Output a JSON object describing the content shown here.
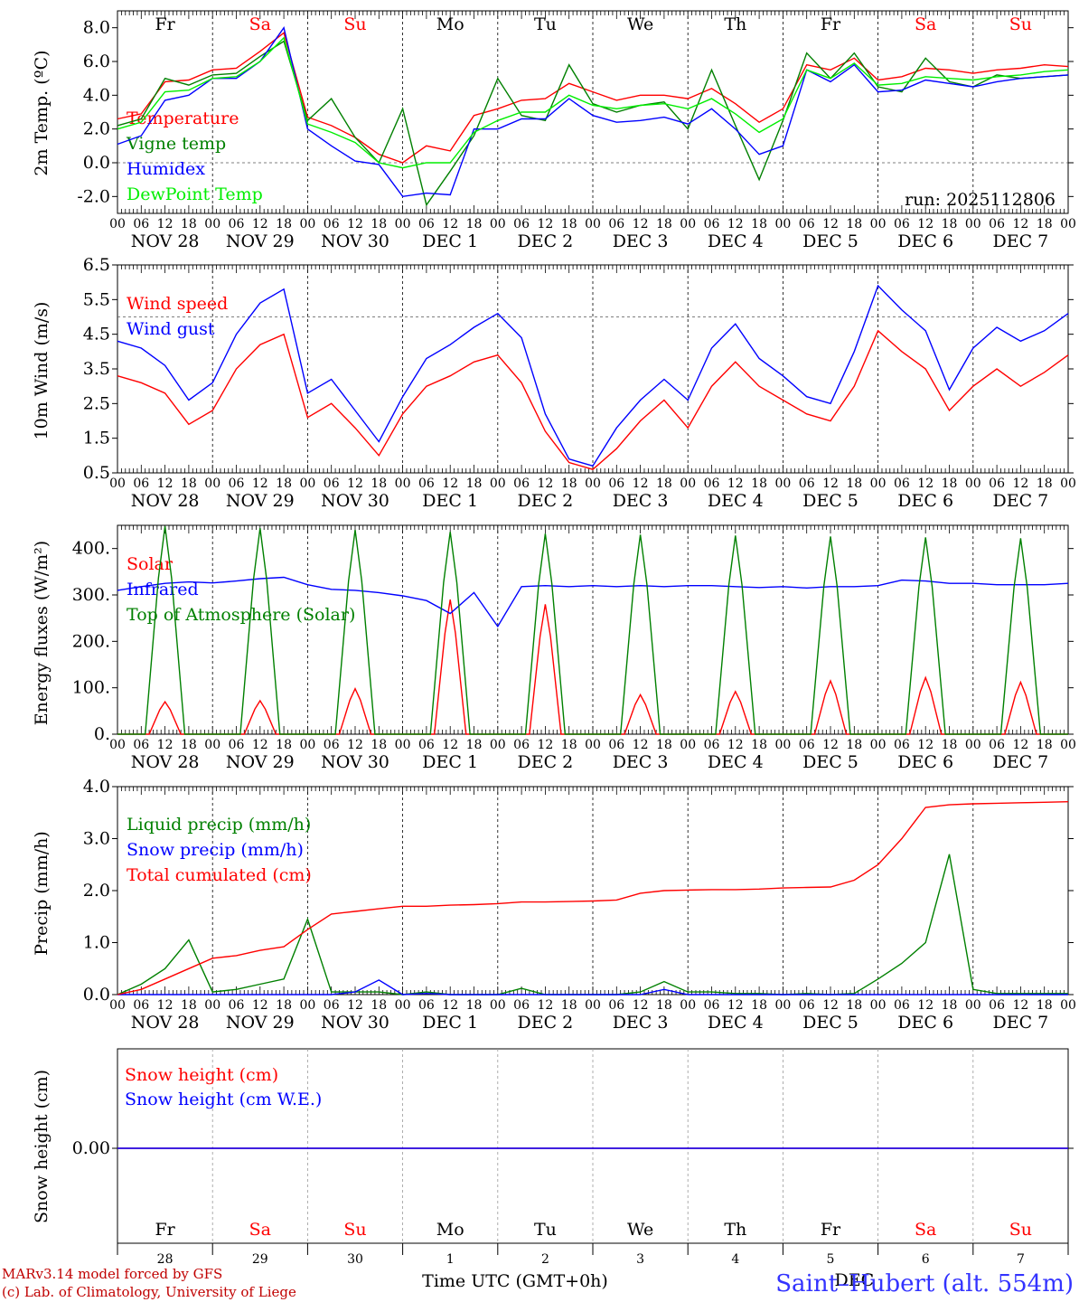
{
  "chart_data": [
    {
      "type": "line",
      "id": "temp",
      "ylabel": "2m Temp. (ºC)",
      "ylim": [
        -3.0,
        9.0
      ],
      "yticks": [
        -2.0,
        0.0,
        2.0,
        4.0,
        6.0,
        8.0
      ],
      "ytick_labels": [
        "-2.0",
        "0.0",
        "2.0",
        "4.0",
        "6.0",
        "8.0"
      ],
      "reference_line": 0.0,
      "x_hours": [
        0,
        6,
        12,
        18,
        24,
        30,
        36,
        42,
        48,
        54,
        60,
        66,
        72,
        78,
        84,
        90,
        96,
        102,
        108,
        114,
        120,
        126,
        132,
        138,
        144,
        150,
        156,
        162,
        168,
        174,
        180,
        186,
        192,
        198,
        204,
        210,
        216,
        222,
        228,
        234,
        240
      ],
      "annotation": "run: 2025112806",
      "series": [
        {
          "name": "Temperature",
          "color": "#ff0000",
          "values": [
            2.6,
            2.9,
            4.8,
            4.9,
            5.5,
            5.6,
            6.6,
            7.7,
            2.7,
            2.2,
            1.5,
            0.5,
            0.0,
            1.0,
            0.7,
            2.8,
            3.2,
            3.7,
            3.8,
            4.7,
            4.2,
            3.7,
            4.0,
            4.0,
            3.8,
            4.4,
            3.5,
            2.4,
            3.2,
            5.8,
            5.5,
            6.2,
            4.9,
            5.1,
            5.6,
            5.5,
            5.3,
            5.5,
            5.6,
            5.8,
            5.7
          ]
        },
        {
          "name": "Vigne temp",
          "color": "#008000",
          "values": [
            2.2,
            2.6,
            5.0,
            4.6,
            5.2,
            5.3,
            6.3,
            7.2,
            2.5,
            3.8,
            1.5,
            0.0,
            3.2,
            -2.5,
            -0.5,
            1.6,
            5.0,
            2.8,
            2.5,
            5.8,
            3.5,
            3.0,
            3.4,
            3.6,
            2.0,
            5.5,
            2.2,
            -1.0,
            2.5,
            6.5,
            5.0,
            6.5,
            4.5,
            4.2,
            6.2,
            4.8,
            4.5,
            5.2,
            5.0,
            5.1,
            5.2
          ]
        },
        {
          "name": "Humidex",
          "color": "#0000ff",
          "values": [
            1.1,
            1.6,
            3.7,
            4.0,
            5.0,
            5.0,
            6.0,
            8.0,
            2.0,
            1.0,
            0.1,
            -0.1,
            -2.0,
            -1.8,
            -1.9,
            2.0,
            2.0,
            2.6,
            2.6,
            3.8,
            2.8,
            2.4,
            2.5,
            2.7,
            2.3,
            3.2,
            2.0,
            0.5,
            1.0,
            5.5,
            4.8,
            5.8,
            4.2,
            4.3,
            4.9,
            4.7,
            4.5,
            4.8,
            5.0,
            5.1,
            5.2
          ]
        },
        {
          "name": "DewPoint Temp",
          "color": "#00ee00",
          "values": [
            2.0,
            2.4,
            4.2,
            4.3,
            5.0,
            5.1,
            6.0,
            7.4,
            2.3,
            1.8,
            1.2,
            0.0,
            -0.3,
            0.0,
            0.0,
            1.8,
            2.5,
            3.0,
            3.0,
            4.0,
            3.4,
            3.2,
            3.4,
            3.5,
            3.2,
            3.8,
            2.9,
            1.8,
            2.6,
            5.5,
            5.0,
            5.9,
            4.6,
            4.7,
            5.1,
            5.0,
            4.9,
            5.1,
            5.2,
            5.4,
            5.5
          ]
        }
      ]
    },
    {
      "type": "line",
      "id": "wind",
      "ylabel": "10m Wind (m/s)",
      "ylim": [
        0.5,
        6.5
      ],
      "yticks": [
        0.5,
        1.5,
        2.5,
        3.5,
        4.5,
        5.5,
        6.5
      ],
      "ytick_labels": [
        "0.5",
        "1.5",
        "2.5",
        "3.5",
        "4.5",
        "5.5",
        "6.5"
      ],
      "reference_line": 5.0,
      "x_hours": [
        0,
        6,
        12,
        18,
        24,
        30,
        36,
        42,
        48,
        54,
        60,
        66,
        72,
        78,
        84,
        90,
        96,
        102,
        108,
        114,
        120,
        126,
        132,
        138,
        144,
        150,
        156,
        162,
        168,
        174,
        180,
        186,
        192,
        198,
        204,
        210,
        216,
        222,
        228,
        234,
        240
      ],
      "series": [
        {
          "name": "Wind speed",
          "color": "#ff0000",
          "values": [
            3.3,
            3.1,
            2.8,
            1.9,
            2.3,
            3.5,
            4.2,
            4.5,
            2.1,
            2.5,
            1.8,
            1.0,
            2.2,
            3.0,
            3.3,
            3.7,
            3.9,
            3.1,
            1.7,
            0.8,
            0.6,
            1.2,
            2.0,
            2.6,
            1.8,
            3.0,
            3.7,
            3.0,
            2.6,
            2.2,
            2.0,
            3.0,
            4.6,
            4.0,
            3.5,
            2.3,
            3.0,
            3.5,
            3.0,
            3.4,
            3.9
          ]
        },
        {
          "name": "Wind gust",
          "color": "#0000ff",
          "values": [
            4.3,
            4.1,
            3.6,
            2.6,
            3.1,
            4.5,
            5.4,
            5.8,
            2.8,
            3.2,
            2.3,
            1.4,
            2.7,
            3.8,
            4.2,
            4.7,
            5.1,
            4.4,
            2.2,
            0.9,
            0.7,
            1.8,
            2.6,
            3.2,
            2.6,
            4.1,
            4.8,
            3.8,
            3.3,
            2.7,
            2.5,
            4.0,
            5.9,
            5.2,
            4.6,
            2.9,
            4.1,
            4.7,
            4.3,
            4.6,
            5.1
          ]
        }
      ]
    },
    {
      "type": "line",
      "id": "energy",
      "ylabel": "Energy fluxes (W/m²)",
      "ylim": [
        0,
        450
      ],
      "yticks": [
        0,
        100,
        200,
        300,
        400
      ],
      "ytick_labels": [
        "0.",
        "100.",
        "200.",
        "300.",
        "400."
      ],
      "x_hours": [
        0,
        6,
        12,
        18,
        24,
        30,
        36,
        42,
        48,
        54,
        60,
        66,
        72,
        78,
        84,
        90,
        96,
        102,
        108,
        114,
        120,
        126,
        132,
        138,
        144,
        150,
        156,
        162,
        168,
        174,
        180,
        186,
        192,
        198,
        204,
        210,
        216,
        222,
        228,
        234,
        240
      ],
      "daily_peaks": {
        "Solar": [
          70,
          72,
          98,
          290,
          280,
          85,
          92,
          115,
          122,
          112
        ],
        "Top of Atmosphere (Solar)": [
          448,
          444,
          440,
          436,
          432,
          430,
          428,
          426,
          424,
          422
        ]
      },
      "series": [
        {
          "name": "Solar",
          "color": "#ff0000",
          "values": []
        },
        {
          "name": "Infrared",
          "color": "#0000ff",
          "values": [
            310,
            318,
            325,
            328,
            326,
            330,
            335,
            338,
            322,
            312,
            310,
            305,
            298,
            288,
            260,
            305,
            232,
            318,
            320,
            318,
            320,
            318,
            320,
            318,
            320,
            320,
            318,
            316,
            318,
            315,
            318,
            318,
            320,
            332,
            330,
            325,
            325,
            322,
            322,
            322,
            325
          ]
        },
        {
          "name": "Top of Atmosphere (Solar)",
          "color": "#008000",
          "values": []
        }
      ]
    },
    {
      "type": "line",
      "id": "precip",
      "ylabel": "Precip (mm/h)",
      "ylim": [
        0.0,
        4.0
      ],
      "yticks": [
        0.0,
        1.0,
        2.0,
        3.0,
        4.0
      ],
      "ytick_labels": [
        "0.0",
        "1.0",
        "2.0",
        "3.0",
        "4.0"
      ],
      "x_hours": [
        0,
        6,
        12,
        18,
        24,
        30,
        36,
        42,
        48,
        54,
        60,
        66,
        72,
        78,
        84,
        90,
        96,
        102,
        108,
        114,
        120,
        126,
        132,
        138,
        144,
        150,
        156,
        162,
        168,
        174,
        180,
        186,
        192,
        198,
        204,
        210,
        216,
        222,
        228,
        234,
        240
      ],
      "series": [
        {
          "name": "Liquid precip (mm/h)",
          "color": "#008000",
          "values": [
            0.0,
            0.2,
            0.5,
            1.05,
            0.05,
            0.1,
            0.2,
            0.3,
            1.45,
            0.05,
            0.05,
            0.05,
            0.0,
            0.05,
            0.0,
            0.0,
            0.0,
            0.12,
            0.0,
            0.0,
            0.0,
            0.0,
            0.05,
            0.25,
            0.05,
            0.05,
            0.02,
            0.02,
            0.0,
            0.02,
            0.0,
            0.02,
            0.3,
            0.6,
            1.0,
            2.7,
            0.1,
            0.02,
            0.02,
            0.02,
            0.02
          ]
        },
        {
          "name": "Snow precip (mm/h)",
          "color": "#0000ff",
          "values": [
            0,
            0,
            0,
            0,
            0,
            0,
            0,
            0,
            0,
            0,
            0.05,
            0.28,
            0,
            0.02,
            0,
            0,
            0,
            0,
            0,
            0,
            0,
            0,
            0,
            0.1,
            0,
            0,
            0,
            0,
            0,
            0,
            0,
            0,
            0,
            0,
            0,
            0,
            0,
            0,
            0,
            0,
            0
          ]
        },
        {
          "name": "Total cumulated (cm)",
          "color": "#ff0000",
          "values": [
            0.0,
            0.1,
            0.3,
            0.5,
            0.7,
            0.75,
            0.85,
            0.92,
            1.25,
            1.55,
            1.6,
            1.65,
            1.7,
            1.7,
            1.72,
            1.73,
            1.75,
            1.78,
            1.78,
            1.79,
            1.8,
            1.82,
            1.95,
            2.0,
            2.01,
            2.02,
            2.02,
            2.03,
            2.05,
            2.06,
            2.07,
            2.2,
            2.5,
            3.0,
            3.6,
            3.65,
            3.67,
            3.68,
            3.69,
            3.7,
            3.71
          ]
        }
      ]
    },
    {
      "type": "line",
      "id": "snow",
      "ylabel": "Snow height (cm)",
      "yticks": [
        0.0
      ],
      "ytick_labels": [
        "0.00"
      ],
      "series": [
        {
          "name": "Snow height (cm)",
          "color": "#ff0000",
          "values": [
            0.0,
            0.0
          ]
        },
        {
          "name": "Snow height (cm W.E.)",
          "color": "#0000ff",
          "values": [
            0.0,
            0.0
          ]
        }
      ]
    }
  ],
  "days_abbrev": [
    "Fr",
    "Sa",
    "Su",
    "Mo",
    "Tu",
    "We",
    "Th",
    "Fr",
    "Sa",
    "Su"
  ],
  "weekend_color": "#ff0000",
  "weekday_color": "#000000",
  "date_labels": [
    "NOV 28",
    "NOV 29",
    "NOV 30",
    "DEC  1",
    "DEC  2",
    "DEC  3",
    "DEC  4",
    "DEC  5",
    "DEC  6",
    "DEC  7"
  ],
  "hour_labels": [
    "00",
    "06",
    "12",
    "18"
  ],
  "hour_label_end": "00",
  "day_numbers": [
    "28",
    "29",
    "30",
    "1",
    "2",
    "3",
    "4",
    "5",
    "6",
    "7"
  ],
  "month_label": "DEC",
  "xlabel": "Time UTC (GMT+0h)",
  "footer": {
    "line1": "MARv3.14 model forced by GFS",
    "line2": "(c) Lab. of Climatology, University of Liege",
    "station": "Saint–Hubert (alt. 554m)"
  }
}
